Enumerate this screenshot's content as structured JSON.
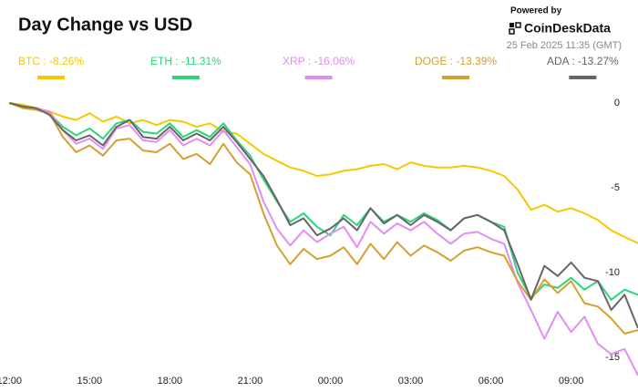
{
  "chart_data": {
    "type": "line",
    "title": "Day Change vs USD",
    "powered_by": "Powered by",
    "brand": "CoinDeskData",
    "timestamp": "25 Feb 2025 11:35 (GMT)",
    "x": [
      0,
      0.5,
      1,
      1.5,
      2,
      2.5,
      3,
      3.5,
      4,
      4.5,
      5,
      5.5,
      6,
      6.5,
      7,
      7.5,
      8,
      8.5,
      9,
      9.5,
      10,
      10.5,
      11,
      11.5,
      12,
      12.5,
      13,
      13.5,
      14,
      14.5,
      15,
      15.5,
      16,
      16.5,
      17,
      17.5,
      18,
      18.5,
      19,
      19.5,
      20,
      20.5,
      21,
      21.5,
      22,
      22.5,
      23,
      23.5
    ],
    "xlim": [
      -0.35,
      23.5
    ],
    "xticks": [
      {
        "value": 0,
        "label": "12:00"
      },
      {
        "value": 3,
        "label": "15:00"
      },
      {
        "value": 6,
        "label": "18:00"
      },
      {
        "value": 9,
        "label": "21:00"
      },
      {
        "value": 12,
        "label": "00:00"
      },
      {
        "value": 15,
        "label": "03:00"
      },
      {
        "value": 18,
        "label": "06:00"
      },
      {
        "value": 21,
        "label": "09:00"
      }
    ],
    "ylim": [
      -16.5,
      0.7
    ],
    "yticks": [
      0,
      -5,
      -10,
      -15
    ],
    "grid": false,
    "series": [
      {
        "name": "BTC : -8.26%",
        "color": "#f5c800",
        "values": [
          0,
          -0.1,
          -0.3,
          -0.5,
          -0.8,
          -1.0,
          -0.6,
          -1.1,
          -0.8,
          -1.2,
          -1.0,
          -1.3,
          -1.0,
          -1.1,
          -1.4,
          -1.2,
          -1.7,
          -1.8,
          -2.4,
          -3.0,
          -3.4,
          -3.8,
          -4.0,
          -4.3,
          -4.2,
          -4.0,
          -3.9,
          -3.7,
          -3.6,
          -3.9,
          -3.5,
          -3.7,
          -3.8,
          -3.8,
          -3.7,
          -3.8,
          -4.0,
          -4.3,
          -5.1,
          -6.3,
          -6.0,
          -6.4,
          -6.2,
          -6.5,
          -6.9,
          -7.5,
          -7.9,
          -8.26
        ]
      },
      {
        "name": "ETH : -11.31%",
        "color": "#2ed47a",
        "values": [
          0,
          -0.2,
          -0.3,
          -0.6,
          -1.4,
          -1.9,
          -1.5,
          -2.1,
          -1.2,
          -1.0,
          -1.7,
          -1.8,
          -1.2,
          -2.0,
          -1.6,
          -2.0,
          -1.2,
          -2.2,
          -3.1,
          -4.5,
          -5.8,
          -7.0,
          -6.5,
          -7.3,
          -7.8,
          -6.6,
          -7.2,
          -6.2,
          -7.0,
          -6.6,
          -7.0,
          -6.5,
          -6.9,
          -7.5,
          -6.8,
          -6.6,
          -7.0,
          -7.3,
          -10.0,
          -11.5,
          -10.7,
          -10.9,
          -10.3,
          -11.0,
          -10.5,
          -11.6,
          -11.0,
          -11.31
        ]
      },
      {
        "name": "XRP : -16.06%",
        "color": "#e28cf5",
        "values": [
          0,
          -0.2,
          -0.3,
          -0.5,
          -1.6,
          -2.4,
          -2.1,
          -2.7,
          -1.5,
          -1.3,
          -2.2,
          -2.3,
          -1.6,
          -2.5,
          -2.1,
          -2.5,
          -1.6,
          -2.6,
          -3.6,
          -5.8,
          -7.4,
          -8.4,
          -7.5,
          -8.2,
          -7.7,
          -7.3,
          -8.5,
          -7.0,
          -7.7,
          -7.1,
          -7.5,
          -7.0,
          -7.7,
          -8.3,
          -7.7,
          -7.6,
          -8.0,
          -8.3,
          -10.6,
          -12.2,
          -13.9,
          -12.3,
          -13.5,
          -12.6,
          -14.2,
          -14.8,
          -14.5,
          -16.06
        ]
      },
      {
        "name": "DOGE : -13.39%",
        "color": "#d4a030",
        "values": [
          0,
          -0.3,
          -0.4,
          -0.6,
          -2.0,
          -2.9,
          -2.5,
          -3.1,
          -2.2,
          -2.1,
          -2.8,
          -2.9,
          -2.4,
          -3.3,
          -3.0,
          -3.6,
          -2.4,
          -3.5,
          -4.2,
          -6.5,
          -8.4,
          -9.5,
          -8.6,
          -9.2,
          -9.0,
          -8.5,
          -9.5,
          -8.3,
          -9.2,
          -8.2,
          -9.0,
          -8.4,
          -8.8,
          -9.3,
          -8.7,
          -8.5,
          -8.8,
          -9.0,
          -10.5,
          -11.6,
          -10.4,
          -11.2,
          -10.5,
          -11.8,
          -12.0,
          -12.7,
          -13.6,
          -13.39
        ]
      },
      {
        "name": "ADA : -13.27%",
        "color": "#666666",
        "values": [
          0,
          -0.2,
          -0.3,
          -0.7,
          -1.6,
          -2.2,
          -1.9,
          -2.5,
          -1.4,
          -1.0,
          -2.0,
          -2.1,
          -1.4,
          -2.2,
          -1.8,
          -2.2,
          -1.4,
          -2.3,
          -3.3,
          -4.3,
          -5.7,
          -7.2,
          -6.8,
          -7.8,
          -7.4,
          -6.8,
          -7.5,
          -6.2,
          -7.1,
          -6.6,
          -7.2,
          -6.6,
          -7.0,
          -7.5,
          -6.8,
          -6.6,
          -7.0,
          -7.5,
          -9.5,
          -11.6,
          -9.6,
          -10.2,
          -9.4,
          -10.3,
          -10.5,
          -12.2,
          -11.3,
          -13.27
        ]
      }
    ]
  }
}
